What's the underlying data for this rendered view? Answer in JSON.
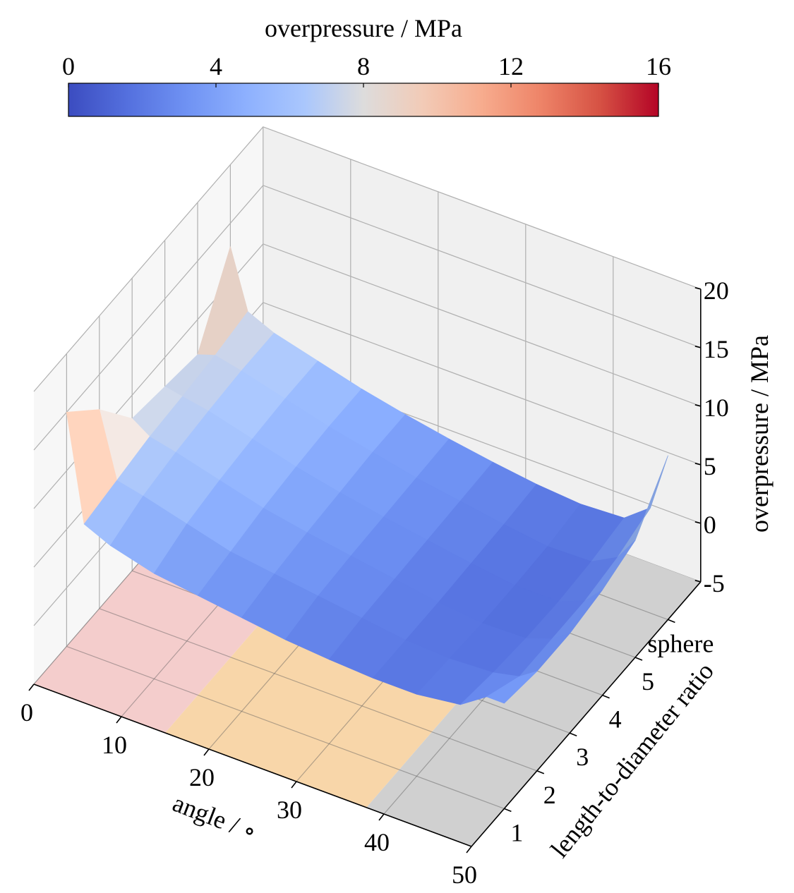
{
  "chart_data": {
    "type": "surface",
    "colorbar": {
      "label": "overpressure / MPa",
      "range": [
        0,
        16
      ],
      "ticks": [
        "0",
        "4",
        "8",
        "12",
        "16"
      ],
      "tick_values": [
        0,
        4,
        8,
        12,
        16
      ],
      "colormap": "coolwarm"
    },
    "xlabel": "angle / ∘",
    "ylabel": "length-to-diameter ratio",
    "zlabel": "overpressure / MPa",
    "xlim": [
      0,
      50
    ],
    "zlim": [
      -5,
      20
    ],
    "x_ticks": [
      "0",
      "10",
      "20",
      "30",
      "40",
      "50"
    ],
    "x_tick_values": [
      0,
      10,
      20,
      30,
      40,
      50
    ],
    "y_ticks": [
      "1",
      "2",
      "3",
      "4",
      "5",
      "sphere"
    ],
    "z_ticks": [
      "-5",
      "0",
      "5",
      "10",
      "15",
      "20"
    ],
    "z_tick_values": [
      -5,
      0,
      5,
      10,
      15,
      20
    ],
    "grid": true,
    "floor_regions": [
      {
        "from": 0,
        "to": 15,
        "color": "#f4cdcc"
      },
      {
        "from": 15,
        "to": 38,
        "color": "#f8d6a9"
      },
      {
        "from": 38,
        "to": 50,
        "color": "#d0d0d0"
      }
    ],
    "x": [
      0,
      2,
      5,
      10,
      15,
      20,
      25,
      30,
      35,
      40,
      45,
      48,
      50
    ],
    "y": [
      "1",
      "2",
      "3",
      "4",
      "5",
      "sphere"
    ],
    "z": [
      [
        15,
        6,
        5,
        4,
        3.5,
        3,
        2.5,
        2.2,
        2,
        2,
        2.5,
        4,
        4
      ],
      [
        12,
        6.5,
        6,
        5,
        4,
        3.5,
        3,
        2.5,
        2,
        1.8,
        2,
        2.5,
        3.5
      ],
      [
        8,
        7,
        6.5,
        5.5,
        4.5,
        3.8,
        3.2,
        2.6,
        2,
        1.6,
        1.7,
        2.5,
        3.5
      ],
      [
        7.5,
        7.2,
        6.8,
        5.8,
        4.8,
        4,
        3.3,
        2.7,
        2.1,
        1.6,
        1.6,
        2.5,
        4
      ],
      [
        7,
        7.5,
        7,
        6,
        5,
        4.2,
        3.4,
        2.8,
        2.2,
        1.7,
        1.8,
        3,
        5
      ],
      [
        13,
        8,
        7,
        6,
        5,
        4.2,
        3.5,
        2.9,
        2.4,
        2.1,
        2.3,
        4,
        9
      ]
    ]
  }
}
